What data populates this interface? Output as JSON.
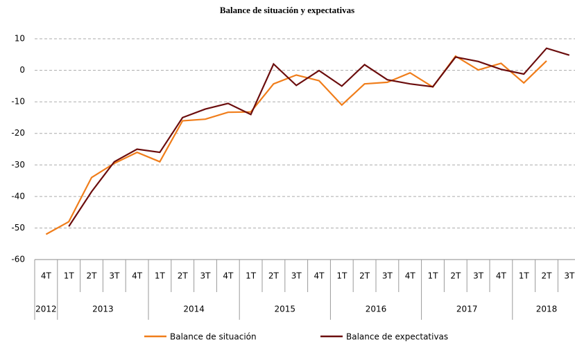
{
  "chart_data": {
    "type": "line",
    "title": "Balance de situación y expectativas",
    "categories": [
      "4T",
      "1T",
      "2T",
      "3T",
      "4T",
      "1T",
      "2T",
      "3T",
      "4T",
      "1T",
      "2T",
      "3T",
      "4T",
      "1T",
      "2T",
      "3T",
      "4T",
      "1T",
      "2T",
      "3T",
      "4T",
      "1T",
      "2T",
      "3T"
    ],
    "years": [
      "2012",
      "2013",
      "2014",
      "2015",
      "2016",
      "2017",
      "2018"
    ],
    "series": [
      {
        "name": "Balance de situación",
        "color": "#f07d1a",
        "values": [
          -52,
          -48,
          -34,
          -29.5,
          -26,
          -29,
          -16,
          -15.5,
          -13.3,
          -13.2,
          -4.3,
          -1.5,
          -3.3,
          -11,
          -4.3,
          -3.8,
          -0.8,
          -5.3,
          4.5,
          0.1,
          2.2,
          -4,
          3,
          null
        ]
      },
      {
        "name": "Balance de expectativas",
        "color": "#6b0d0d",
        "values": [
          null,
          -49.5,
          -38.5,
          -29,
          -25,
          -26,
          -15,
          -12.3,
          -10.5,
          -14,
          2,
          -4.8,
          -0.1,
          -5,
          1.8,
          -3,
          -4.3,
          -5.2,
          4.2,
          2.8,
          0.3,
          -1.2,
          7,
          4.8
        ]
      }
    ],
    "ylim": [
      -60,
      10
    ],
    "yticks": [
      10,
      0,
      -10,
      -20,
      -30,
      -40,
      -50,
      -60
    ],
    "grid": true
  }
}
